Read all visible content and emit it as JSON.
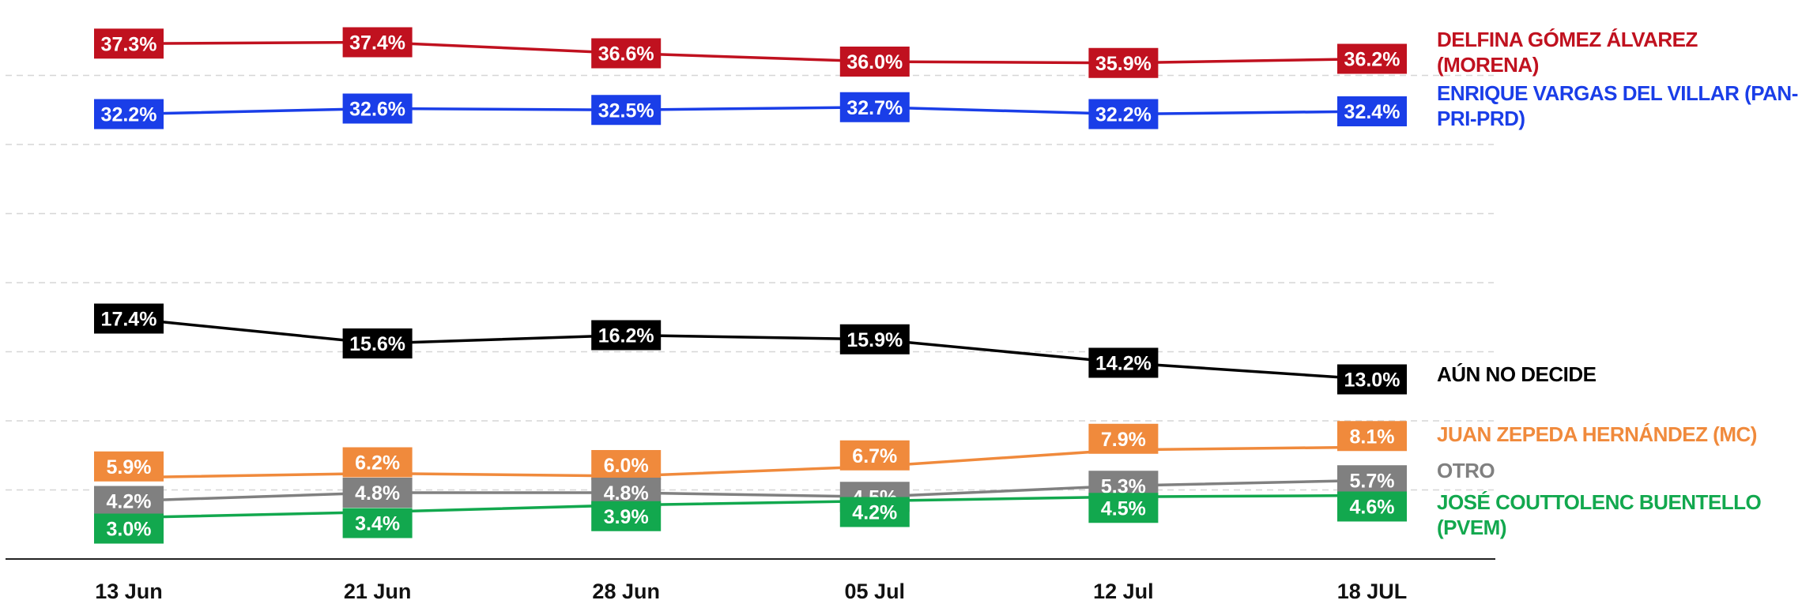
{
  "chart_data": {
    "type": "line",
    "categories": [
      "13 Jun",
      "21 Jun",
      "28 Jun",
      "05 Jul",
      "12 Jul",
      "18 JUL"
    ],
    "ylim": [
      0,
      40
    ],
    "yticks": [
      0,
      5,
      10,
      15,
      20,
      25,
      30,
      35
    ],
    "grid": true,
    "series": [
      {
        "name": "DELFINA GÓMEZ ÁLVAREZ (MORENA)",
        "color": "#c0111f",
        "values": [
          37.3,
          37.4,
          36.6,
          36.0,
          35.9,
          36.2
        ],
        "value_labels": [
          "37.3%",
          "37.4%",
          "36.6%",
          "36.0%",
          "35.9%",
          "36.2%"
        ]
      },
      {
        "name": "ENRIQUE VARGAS DEL VILLAR (PAN-PRI-PRD)",
        "color": "#1a3ee8",
        "values": [
          32.2,
          32.6,
          32.5,
          32.7,
          32.2,
          32.4
        ],
        "value_labels": [
          "32.2%",
          "32.6%",
          "32.5%",
          "32.7%",
          "32.2%",
          "32.4%"
        ]
      },
      {
        "name": "AÚN NO DECIDE",
        "color": "#000000",
        "values": [
          17.4,
          15.6,
          16.2,
          15.9,
          14.2,
          13.0
        ],
        "value_labels": [
          "17.4%",
          "15.6%",
          "16.2%",
          "15.9%",
          "14.2%",
          "13.0%"
        ]
      },
      {
        "name": "JUAN ZEPEDA HERNÁNDEZ (MC)",
        "color": "#f08a3c",
        "values": [
          5.9,
          6.2,
          6.0,
          6.7,
          7.9,
          8.1
        ],
        "value_labels": [
          "5.9%",
          "6.2%",
          "6.0%",
          "6.7%",
          "7.9%",
          "8.1%"
        ]
      },
      {
        "name": "OTRO",
        "color": "#808080",
        "values": [
          4.2,
          4.8,
          4.8,
          4.5,
          5.3,
          5.7
        ],
        "value_labels": [
          "4.2%",
          "4.8%",
          "4.8%",
          "4.5%",
          "5.3%",
          "5.7%"
        ]
      },
      {
        "name": "JOSÉ COUTTOLENC BUENTELLO (PVEM)",
        "color": "#12a84e",
        "values": [
          3.0,
          3.4,
          3.9,
          4.2,
          4.5,
          4.6
        ],
        "value_labels": [
          "3.0%",
          "3.4%",
          "3.9%",
          "4.2%",
          "4.5%",
          "4.6%"
        ]
      }
    ]
  }
}
